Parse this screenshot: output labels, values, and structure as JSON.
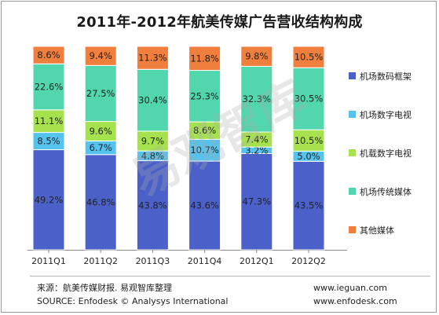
{
  "chart_data": {
    "type": "bar",
    "stacked": true,
    "title": "2011年-2012年航美传媒广告营收结构构成",
    "categories": [
      "2011Q1",
      "2011Q2",
      "2011Q3",
      "2011Q4",
      "2012Q1",
      "2012Q2"
    ],
    "series": [
      {
        "name": "其他媒体",
        "color": "#f07e3c",
        "values": [
          8.6,
          9.4,
          11.3,
          11.8,
          9.8,
          10.5
        ]
      },
      {
        "name": "机场传统媒体",
        "color": "#52d6ad",
        "values": [
          22.6,
          27.5,
          30.4,
          25.3,
          32.3,
          30.5
        ]
      },
      {
        "name": "机载数字电视",
        "color": "#a5e24e",
        "values": [
          11.1,
          9.6,
          9.7,
          8.6,
          7.4,
          10.5
        ]
      },
      {
        "name": "机场数字电视",
        "color": "#56c3ee",
        "values": [
          8.5,
          6.7,
          4.8,
          10.7,
          3.2,
          5.0
        ]
      },
      {
        "name": "机场数码框架",
        "color": "#4b61c9",
        "values": [
          49.2,
          46.8,
          43.8,
          43.6,
          47.3,
          43.5
        ]
      }
    ],
    "stack_order_bottom_to_top": [
      "机场数码框架",
      "机场数字电视",
      "机载数字电视",
      "机场传统媒体",
      "其他媒体"
    ],
    "legend_order": [
      "机场数码框架",
      "机场数字电视",
      "机载数字电视",
      "机场传统媒体",
      "其他媒体"
    ],
    "ylim": [
      0,
      100
    ],
    "legend_position": "right",
    "grid": false
  },
  "footer": {
    "source_cn": "来源：航美传媒财报. 易观智库整理",
    "source_en": "SOURCE: Enfodesk © Analysys International",
    "site1": "www.ieguan.com",
    "site2": "www.enfodesk.com"
  },
  "watermark": "易观智库"
}
